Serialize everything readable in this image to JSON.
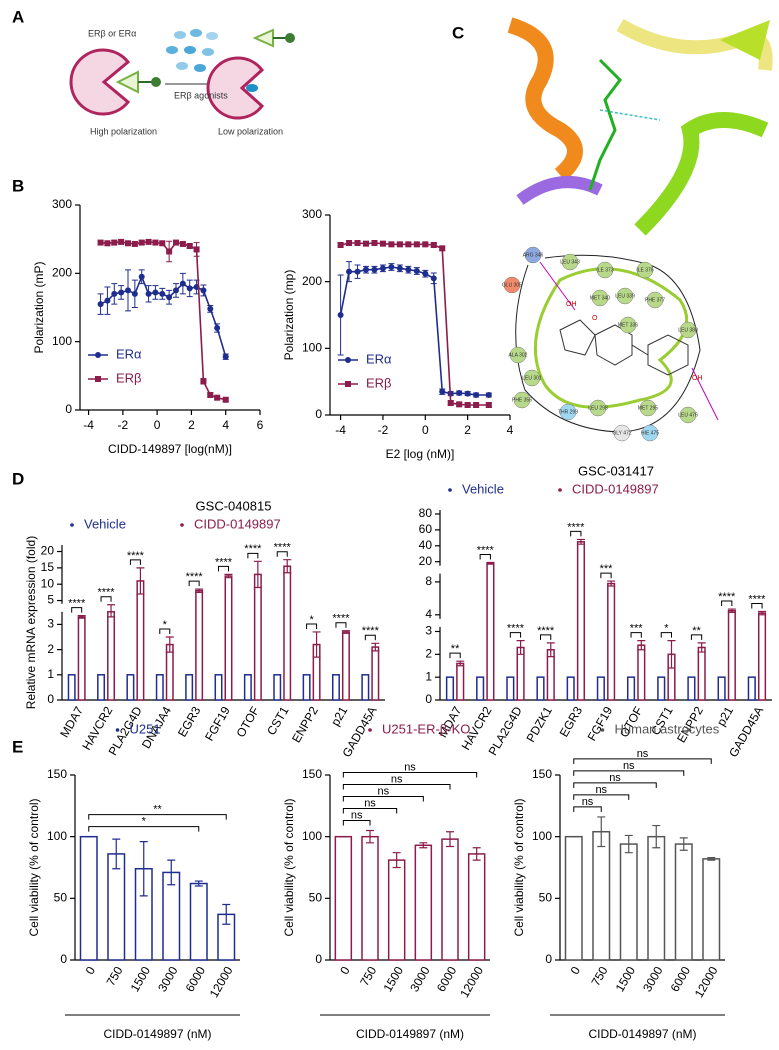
{
  "panel_labels": [
    "A",
    "B",
    "C",
    "D",
    "E"
  ],
  "schematic": {
    "receptor": "ERβ or ERα",
    "agonist": "ERβ agonists",
    "left_caption": "High polarization",
    "right_caption": "Low polarization"
  },
  "docking": {
    "residues": [
      {
        "label": "ARG 346",
        "color": "#8ea8e0"
      },
      {
        "label": "LEU 343",
        "color": "#b8d98a"
      },
      {
        "label": "ILE 373",
        "color": "#b8d98a"
      },
      {
        "label": "ILE 376",
        "color": "#b8d98a"
      },
      {
        "label": "GLU 305",
        "color": "#f08a6a"
      },
      {
        "label": "MET 340",
        "color": "#b8d98a"
      },
      {
        "label": "LEU 339",
        "color": "#b8d98a"
      },
      {
        "label": "PHE 377",
        "color": "#b8d98a"
      },
      {
        "label": "MET 336",
        "color": "#b8d98a"
      },
      {
        "label": "ALA 302",
        "color": "#b8d98a"
      },
      {
        "label": "LEU 301",
        "color": "#b8d98a"
      },
      {
        "label": "LEU 380",
        "color": "#b8d98a"
      },
      {
        "label": "PHE 356",
        "color": "#b8d98a"
      },
      {
        "label": "THR 299",
        "color": "#9fd8f0"
      },
      {
        "label": "LEU 298",
        "color": "#b8d98a"
      },
      {
        "label": "MET 295",
        "color": "#b8d98a"
      },
      {
        "label": "LEU 476",
        "color": "#b8d98a"
      },
      {
        "label": "HIE 475",
        "color": "#9fd8f0"
      },
      {
        "label": "GLY 472",
        "color": "#e6e6e6"
      }
    ],
    "atoms": [
      "OH",
      "O",
      "F",
      "OH"
    ]
  },
  "chart_data": [
    {
      "type": "line",
      "xlabel": "CIDD-149897 [log(nM)]",
      "ylabel": "Polarization (mP)",
      "xlim": [
        -4.5,
        6
      ],
      "ylim": [
        0,
        300
      ],
      "xticks": [
        -4,
        -2,
        0,
        2,
        4,
        6
      ],
      "yticks": [
        0,
        100,
        200,
        300
      ],
      "legend": "lower left",
      "series": [
        {
          "name": "ERα",
          "color": "#1f2d8f",
          "marker": "circle",
          "x": [
            -3.3,
            -2.9,
            -2.5,
            -2.1,
            -1.7,
            -1.3,
            -0.9,
            -0.5,
            -0.1,
            0.3,
            0.7,
            1.1,
            1.5,
            1.9,
            2.3,
            2.7,
            3.1,
            3.5,
            4.0
          ],
          "values": [
            155,
            160,
            170,
            172,
            175,
            170,
            195,
            170,
            172,
            170,
            165,
            175,
            185,
            178,
            180,
            175,
            148,
            120,
            78
          ],
          "errors": [
            15,
            20,
            15,
            10,
            30,
            20,
            10,
            12,
            10,
            8,
            10,
            10,
            15,
            12,
            10,
            8,
            5,
            6,
            4
          ]
        },
        {
          "name": "ERβ",
          "color": "#8b1c4b",
          "marker": "square",
          "x": [
            -3.3,
            -2.9,
            -2.5,
            -2.1,
            -1.7,
            -1.3,
            -0.9,
            -0.5,
            -0.1,
            0.3,
            0.7,
            1.1,
            1.5,
            1.9,
            2.3,
            2.7,
            3.1,
            3.5,
            4.0
          ],
          "values": [
            245,
            244,
            245,
            246,
            244,
            243,
            245,
            246,
            245,
            244,
            232,
            245,
            243,
            240,
            235,
            42,
            22,
            18,
            15
          ],
          "errors": [
            3,
            3,
            3,
            3,
            3,
            3,
            3,
            3,
            3,
            3,
            15,
            3,
            3,
            3,
            10,
            4,
            3,
            2,
            2
          ]
        }
      ]
    },
    {
      "type": "line",
      "xlabel": "E2 [log (nM)]",
      "ylabel": "Polarization (mp)",
      "xlim": [
        -4.5,
        4
      ],
      "ylim": [
        0,
        300
      ],
      "xticks": [
        -4,
        -2,
        0,
        2,
        4
      ],
      "yticks": [
        0,
        100,
        200,
        300
      ],
      "legend": "lower left",
      "series": [
        {
          "name": "ERα",
          "color": "#1f2d8f",
          "marker": "circle",
          "x": [
            -4,
            -3.6,
            -3.2,
            -2.8,
            -2.4,
            -2,
            -1.6,
            -1.2,
            -0.8,
            -0.4,
            0,
            0.4,
            0.8,
            1.2,
            1.6,
            2,
            2.4,
            3
          ],
          "values": [
            150,
            215,
            215,
            218,
            218,
            220,
            222,
            220,
            218,
            216,
            212,
            205,
            35,
            32,
            33,
            32,
            30,
            30
          ],
          "errors": [
            60,
            15,
            10,
            5,
            5,
            5,
            5,
            5,
            5,
            5,
            5,
            8,
            4,
            3,
            3,
            3,
            3,
            3
          ]
        },
        {
          "name": "ERβ",
          "color": "#8b1c4b",
          "marker": "square",
          "x": [
            -4,
            -3.6,
            -3.2,
            -2.8,
            -2.4,
            -2,
            -1.6,
            -1.2,
            -0.8,
            -0.4,
            0,
            0.4,
            0.8,
            1.2,
            1.6,
            2,
            2.4,
            3
          ],
          "values": [
            255,
            258,
            258,
            257,
            258,
            257,
            256,
            256,
            256,
            256,
            256,
            255,
            250,
            18,
            16,
            15,
            15,
            15
          ],
          "errors": [
            3,
            3,
            3,
            3,
            3,
            3,
            3,
            3,
            3,
            3,
            3,
            3,
            3,
            3,
            3,
            3,
            3,
            3
          ]
        }
      ]
    },
    {
      "type": "bar",
      "title": "GSC-040815",
      "ylabel": "Relative mRNA expression (fold)",
      "categories": [
        "MDA7",
        "HAVCR2",
        "PLA2G4D",
        "DNAJA4",
        "EGR3",
        "FGF19",
        "OTOF",
        "CST1",
        "ENPP2",
        "p21",
        "GADD45A"
      ],
      "ysegments": [
        [
          0,
          3.5
        ],
        [
          4,
          22
        ]
      ],
      "yticks": [
        0,
        1,
        2,
        3,
        5,
        10,
        15,
        20
      ],
      "legend": "top",
      "series": [
        {
          "name": "Vehicle",
          "color": "#1f2d8f",
          "values": [
            1,
            1,
            1,
            1,
            1,
            1,
            1,
            1,
            1,
            1,
            1
          ]
        },
        {
          "name": "CIDD-0149897",
          "color": "#8b1c4b",
          "values": [
            3.3,
            3.5,
            11,
            2.2,
            8,
            12.5,
            13,
            15.5,
            2.2,
            2.7,
            2.1
          ],
          "errors": [
            0.05,
            0.2,
            4,
            0.3,
            0.5,
            0.5,
            4,
            2,
            0.5,
            0.05,
            0.15
          ]
        }
      ],
      "significance": [
        "****",
        "****",
        "****",
        "*",
        "****",
        "****",
        "****",
        "****",
        "*",
        "****",
        "****"
      ]
    },
    {
      "type": "bar",
      "title": "GSC-031417",
      "ylabel": null,
      "categories": [
        "MDA7",
        "HAVCR2",
        "PLA2G4D",
        "PDZK1",
        "EGR3",
        "FGF19",
        "OTOF",
        "CST1",
        "ENPP2",
        "p21",
        "GADD45A"
      ],
      "ysegments": [
        [
          0,
          3.2
        ],
        [
          3.5,
          9
        ],
        [
          15,
          85
        ]
      ],
      "yticks": [
        0,
        1,
        2,
        3,
        4,
        8,
        20,
        40,
        60,
        80
      ],
      "legend": "top",
      "series": [
        {
          "name": "Vehicle",
          "color": "#1f2d8f",
          "values": [
            1,
            1,
            1,
            1,
            1,
            1,
            1,
            1,
            1,
            1,
            1
          ]
        },
        {
          "name": "CIDD-0149897",
          "color": "#8b1c4b",
          "values": [
            1.6,
            18,
            2.3,
            2.2,
            45,
            7.8,
            2.4,
            2.0,
            2.3,
            4.5,
            4.2
          ],
          "errors": [
            0.1,
            1,
            0.3,
            0.3,
            3,
            0.3,
            0.2,
            0.6,
            0.2,
            0.2,
            0.2
          ]
        }
      ],
      "significance": [
        "**",
        "****",
        "****",
        "****",
        "****",
        "***",
        "***",
        "*",
        "**",
        "****",
        "****"
      ]
    },
    {
      "type": "bar",
      "xlabel": "CIDD-0149897 (nM)",
      "ylabel": "Cell viability (% of control)",
      "categories": [
        "0",
        "750",
        "1500",
        "3000",
        "6000",
        "12000"
      ],
      "ylim": [
        0,
        150
      ],
      "yticks": [
        0,
        50,
        100,
        150
      ],
      "legend": "top",
      "series": [
        {
          "name": "U251",
          "color": "#1f2d8f",
          "values": [
            100,
            86,
            74,
            71,
            62,
            37
          ],
          "errors": [
            0,
            12,
            22,
            10,
            2,
            8
          ]
        }
      ],
      "significance": [
        null,
        null,
        null,
        null,
        "*",
        "**"
      ]
    },
    {
      "type": "bar",
      "xlabel": "CIDD-0149897 (nM)",
      "ylabel": "Cell viability (% of control)",
      "categories": [
        "0",
        "750",
        "1500",
        "3000",
        "6000",
        "12000"
      ],
      "ylim": [
        0,
        150
      ],
      "yticks": [
        0,
        50,
        100,
        150
      ],
      "legend": "top",
      "series": [
        {
          "name": "U251-ER-β-KO",
          "color": "#8b1c4b",
          "values": [
            100,
            100,
            81,
            93,
            98,
            86
          ],
          "errors": [
            0,
            5,
            6,
            2,
            6,
            5
          ]
        }
      ],
      "significance": [
        null,
        "ns",
        "ns",
        "ns",
        "ns",
        "ns"
      ]
    },
    {
      "type": "bar",
      "xlabel": "CIDD-0149897 (nM)",
      "ylabel": "Cell viability (% of control)",
      "categories": [
        "0",
        "750",
        "1500",
        "3000",
        "6000",
        "12000"
      ],
      "ylim": [
        0,
        150
      ],
      "yticks": [
        0,
        50,
        100,
        150
      ],
      "legend": "top",
      "series": [
        {
          "name": "Human astrocytes",
          "color": "#555555",
          "values": [
            100,
            104,
            94,
            100,
            94,
            82
          ],
          "errors": [
            0,
            12,
            7,
            9,
            5,
            1
          ]
        }
      ],
      "significance": [
        null,
        "ns",
        "ns",
        "ns",
        "ns",
        "ns"
      ]
    }
  ]
}
